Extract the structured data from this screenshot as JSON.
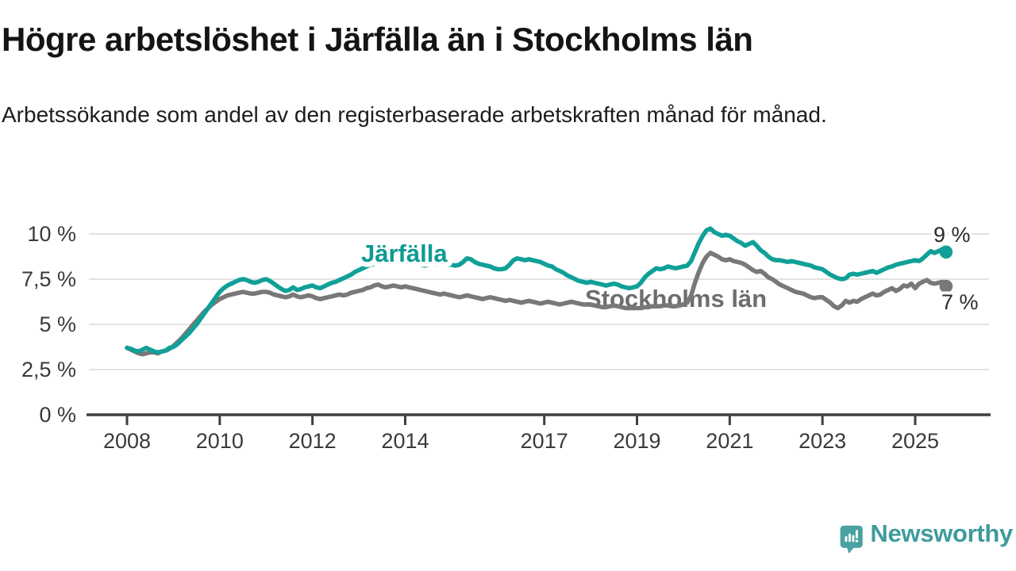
{
  "header": {
    "title": "Högre arbetslöshet i Järfälla än i Stockholms län",
    "subtitle": "Arbetssökande som andel av den registerbaserade arbetskraften månad för månad."
  },
  "footer": {
    "brand": "Newsworthy"
  },
  "colors": {
    "jarfalla_teal": "#10a098",
    "stockholm_gray": "#787878",
    "jarfalla_label": "#0f9a93",
    "stockholm_label": "#6d6d6d",
    "grid": "#d8d8d8",
    "axis": "#3f3f3f",
    "axis_text": "#3a3a3a",
    "end_label_text": "#2b2b2b",
    "brand_teal": "#4aa1a2"
  },
  "chart_data": {
    "type": "line",
    "frequency": "monthly",
    "x_start": "2008-01",
    "x_end": "2025-09",
    "grid": "horizontal gridlines only",
    "legend_position": "labels on lines",
    "ylim": [
      0,
      10.5
    ],
    "x_ticks": [
      2008,
      2010,
      2012,
      2014,
      2017,
      2019,
      2021,
      2023,
      2025
    ],
    "y_ticks": {
      "values": [
        0,
        2.5,
        5,
        7.5,
        10
      ],
      "labels": [
        "0 %",
        "2,5 %",
        "5 %",
        "7,5 %",
        "10 %"
      ]
    },
    "series": [
      {
        "name": "Järfälla",
        "color": "#10a098",
        "end_label": "9 %",
        "end_value": 9.0,
        "values": [
          3.7,
          3.65,
          3.55,
          3.5,
          3.6,
          3.7,
          3.6,
          3.5,
          3.45,
          3.5,
          3.55,
          3.7,
          3.75,
          3.9,
          4.1,
          4.3,
          4.5,
          4.75,
          5.0,
          5.3,
          5.6,
          5.9,
          6.2,
          6.5,
          6.8,
          7.0,
          7.15,
          7.25,
          7.35,
          7.45,
          7.5,
          7.45,
          7.35,
          7.3,
          7.35,
          7.45,
          7.5,
          7.4,
          7.25,
          7.1,
          6.95,
          6.85,
          6.9,
          7.05,
          6.9,
          6.95,
          7.05,
          7.1,
          7.15,
          7.05,
          7.0,
          7.1,
          7.2,
          7.3,
          7.35,
          7.45,
          7.55,
          7.65,
          7.75,
          7.9,
          8.0,
          8.1,
          8.2,
          8.3,
          8.35,
          8.4,
          8.45,
          8.4,
          8.35,
          8.4,
          8.45,
          8.4,
          8.4,
          8.35,
          8.3,
          8.35,
          8.3,
          8.25,
          8.3,
          8.35,
          8.3,
          8.35,
          8.4,
          8.3,
          8.3,
          8.25,
          8.3,
          8.45,
          8.65,
          8.6,
          8.45,
          8.35,
          8.3,
          8.25,
          8.2,
          8.1,
          8.05,
          8.05,
          8.1,
          8.3,
          8.55,
          8.65,
          8.6,
          8.55,
          8.6,
          8.55,
          8.5,
          8.45,
          8.35,
          8.25,
          8.2,
          8.05,
          7.95,
          7.85,
          7.7,
          7.6,
          7.5,
          7.4,
          7.35,
          7.3,
          7.35,
          7.3,
          7.25,
          7.2,
          7.15,
          7.2,
          7.25,
          7.2,
          7.1,
          7.05,
          7.0,
          7.05,
          7.1,
          7.3,
          7.6,
          7.8,
          7.95,
          8.1,
          8.05,
          8.1,
          8.2,
          8.15,
          8.1,
          8.15,
          8.2,
          8.25,
          8.5,
          9.0,
          9.5,
          9.9,
          10.2,
          10.3,
          10.1,
          10.0,
          9.9,
          9.95,
          9.9,
          9.75,
          9.6,
          9.5,
          9.35,
          9.45,
          9.55,
          9.35,
          9.1,
          8.95,
          8.75,
          8.6,
          8.55,
          8.55,
          8.5,
          8.45,
          8.5,
          8.45,
          8.4,
          8.35,
          8.3,
          8.25,
          8.15,
          8.1,
          8.05,
          7.9,
          7.75,
          7.65,
          7.55,
          7.5,
          7.55,
          7.75,
          7.8,
          7.75,
          7.8,
          7.85,
          7.9,
          7.95,
          7.85,
          7.95,
          8.05,
          8.15,
          8.2,
          8.3,
          8.35,
          8.4,
          8.45,
          8.5,
          8.55,
          8.5,
          8.65,
          8.85,
          9.05,
          8.95,
          9.05,
          9.15,
          9.0
        ]
      },
      {
        "name": "Stockholms län",
        "color": "#787878",
        "end_label": "7 %",
        "end_value": 7.1,
        "values": [
          3.7,
          3.6,
          3.5,
          3.4,
          3.35,
          3.4,
          3.45,
          3.45,
          3.4,
          3.5,
          3.55,
          3.65,
          3.8,
          4.0,
          4.2,
          4.45,
          4.7,
          4.95,
          5.2,
          5.45,
          5.7,
          5.9,
          6.1,
          6.25,
          6.4,
          6.5,
          6.6,
          6.65,
          6.7,
          6.75,
          6.8,
          6.75,
          6.7,
          6.7,
          6.75,
          6.8,
          6.8,
          6.75,
          6.65,
          6.6,
          6.55,
          6.5,
          6.55,
          6.65,
          6.55,
          6.5,
          6.55,
          6.6,
          6.55,
          6.45,
          6.4,
          6.45,
          6.5,
          6.55,
          6.6,
          6.65,
          6.6,
          6.65,
          6.75,
          6.8,
          6.85,
          6.9,
          7.0,
          7.05,
          7.15,
          7.2,
          7.1,
          7.05,
          7.1,
          7.15,
          7.1,
          7.05,
          7.1,
          7.05,
          7.0,
          6.95,
          6.9,
          6.85,
          6.8,
          6.75,
          6.7,
          6.65,
          6.7,
          6.65,
          6.6,
          6.55,
          6.5,
          6.55,
          6.6,
          6.55,
          6.5,
          6.45,
          6.4,
          6.45,
          6.5,
          6.45,
          6.4,
          6.35,
          6.3,
          6.35,
          6.3,
          6.25,
          6.2,
          6.25,
          6.3,
          6.25,
          6.2,
          6.15,
          6.2,
          6.25,
          6.2,
          6.15,
          6.1,
          6.15,
          6.2,
          6.25,
          6.2,
          6.15,
          6.1,
          6.1,
          6.1,
          6.05,
          6.0,
          5.95,
          5.95,
          6.0,
          6.05,
          6.0,
          5.95,
          5.9,
          5.9,
          5.9,
          5.9,
          5.9,
          5.95,
          5.95,
          6.0,
          6.0,
          6.0,
          6.05,
          6.05,
          6.0,
          6.0,
          6.05,
          6.1,
          6.2,
          6.6,
          7.3,
          7.9,
          8.4,
          8.75,
          8.95,
          8.85,
          8.75,
          8.6,
          8.55,
          8.6,
          8.5,
          8.45,
          8.4,
          8.3,
          8.15,
          8.0,
          7.9,
          7.95,
          7.8,
          7.6,
          7.5,
          7.35,
          7.2,
          7.1,
          7.0,
          6.9,
          6.8,
          6.75,
          6.7,
          6.6,
          6.5,
          6.45,
          6.5,
          6.5,
          6.35,
          6.2,
          6.0,
          5.9,
          6.05,
          6.3,
          6.2,
          6.3,
          6.25,
          6.4,
          6.5,
          6.6,
          6.7,
          6.6,
          6.65,
          6.8,
          6.9,
          7.0,
          6.85,
          6.95,
          7.15,
          7.1,
          7.25,
          7.0,
          7.25,
          7.35,
          7.45,
          7.3,
          7.25,
          7.3,
          7.35,
          7.1
        ]
      }
    ]
  }
}
